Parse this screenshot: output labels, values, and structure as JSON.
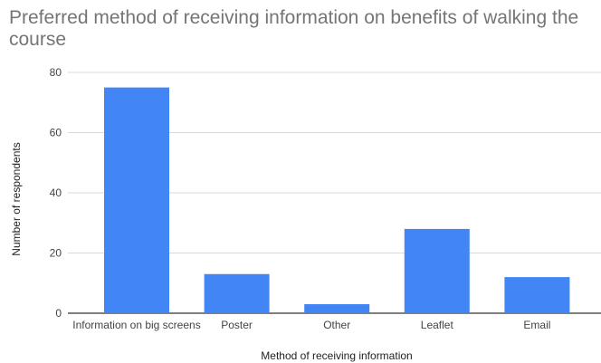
{
  "chart_data": {
    "type": "bar",
    "title": "Preferred method of receiving information on benefits of walking the course",
    "xlabel": "Method of receiving information",
    "ylabel": "Number of respondents",
    "categories": [
      "Information on big screens",
      "Poster",
      "Other",
      "Leaflet",
      "Email"
    ],
    "values": [
      75,
      13,
      3,
      28,
      12
    ],
    "ylim": [
      0,
      80
    ],
    "yticks": [
      0,
      20,
      40,
      60,
      80
    ],
    "grid": true,
    "legend": "none",
    "colors": {
      "bar": "#4285f4",
      "grid": "#d9d9d9",
      "baseline": "#333333"
    }
  }
}
